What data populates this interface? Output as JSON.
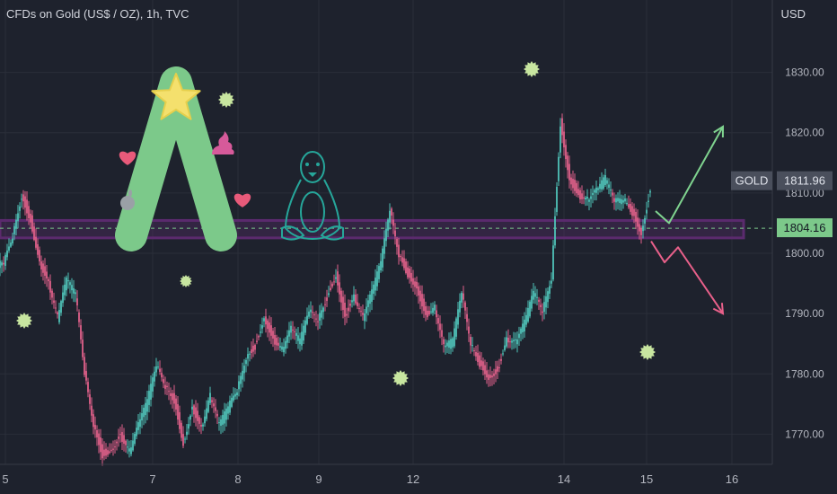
{
  "header": {
    "title": "CFDs on Gold (US$ / OZ), 1h, TVC",
    "currency": "USD"
  },
  "colors": {
    "background": "#1e222d",
    "up": "#26a69a",
    "down": "#ef5350",
    "candle_up_display": "#4fc3b8",
    "candle_down_display": "#e0608a",
    "zone": "#5b2a6e",
    "target_up": "#7fd38f",
    "target_down": "#e8608a",
    "price_label": "#7cc98a"
  },
  "chart_data": {
    "type": "candlestick",
    "title": "CFDs on Gold (US$ / OZ), 1h, TVC",
    "ylabel": "USD",
    "ylim": [
      1765,
      1842
    ],
    "y_ticks": [
      1770,
      1780,
      1790,
      1800,
      1810,
      1820,
      1830
    ],
    "y_tick_labels": [
      "1770.00",
      "1780.00",
      "1790.00",
      "1800.00",
      "1810.00",
      "1820.00",
      "1830.00"
    ],
    "x_ticks": [
      "5",
      "7",
      "8",
      "9",
      "12",
      "14",
      "15",
      "16"
    ],
    "x_tick_index": [
      0.6,
      17,
      26.5,
      35.5,
      46,
      62.8,
      72,
      81.5
    ],
    "xlim": [
      0,
      86
    ],
    "closes": [
      1798,
      1803,
      1810,
      1806,
      1799,
      1795,
      1789,
      1795,
      1793,
      1780,
      1772,
      1767,
      1768,
      1770,
      1767,
      1771,
      1775,
      1781,
      1778,
      1776,
      1769,
      1775,
      1771,
      1776,
      1771,
      1774,
      1777,
      1783,
      1785,
      1790,
      1786,
      1784,
      1787,
      1785,
      1790,
      1789,
      1793,
      1797,
      1790,
      1793,
      1789,
      1793,
      1798,
      1807,
      1800,
      1797,
      1795,
      1790,
      1791,
      1784,
      1785,
      1793,
      1785,
      1782,
      1780,
      1781,
      1786,
      1785,
      1788,
      1793,
      1790,
      1796,
      1822,
      1813,
      1810,
      1809,
      1810,
      1812,
      1808,
      1809,
      1807,
      1804,
      1811
    ],
    "zone": {
      "from": 1803,
      "to": 1805
    },
    "dashed_level": 1804.16,
    "labels": [
      {
        "name": "GOLD",
        "value": "1811.96",
        "price": 1811.96
      },
      {
        "name": "",
        "value": "1804.16",
        "price": 1804.16
      }
    ],
    "projection_up": [
      [
        73,
        1807
      ],
      [
        74.5,
        1805
      ],
      [
        80.5,
        1821
      ]
    ],
    "projection_down": [
      [
        72.5,
        1802
      ],
      [
        74,
        1798.5
      ],
      [
        75.5,
        1801
      ],
      [
        80.5,
        1790
      ]
    ]
  }
}
